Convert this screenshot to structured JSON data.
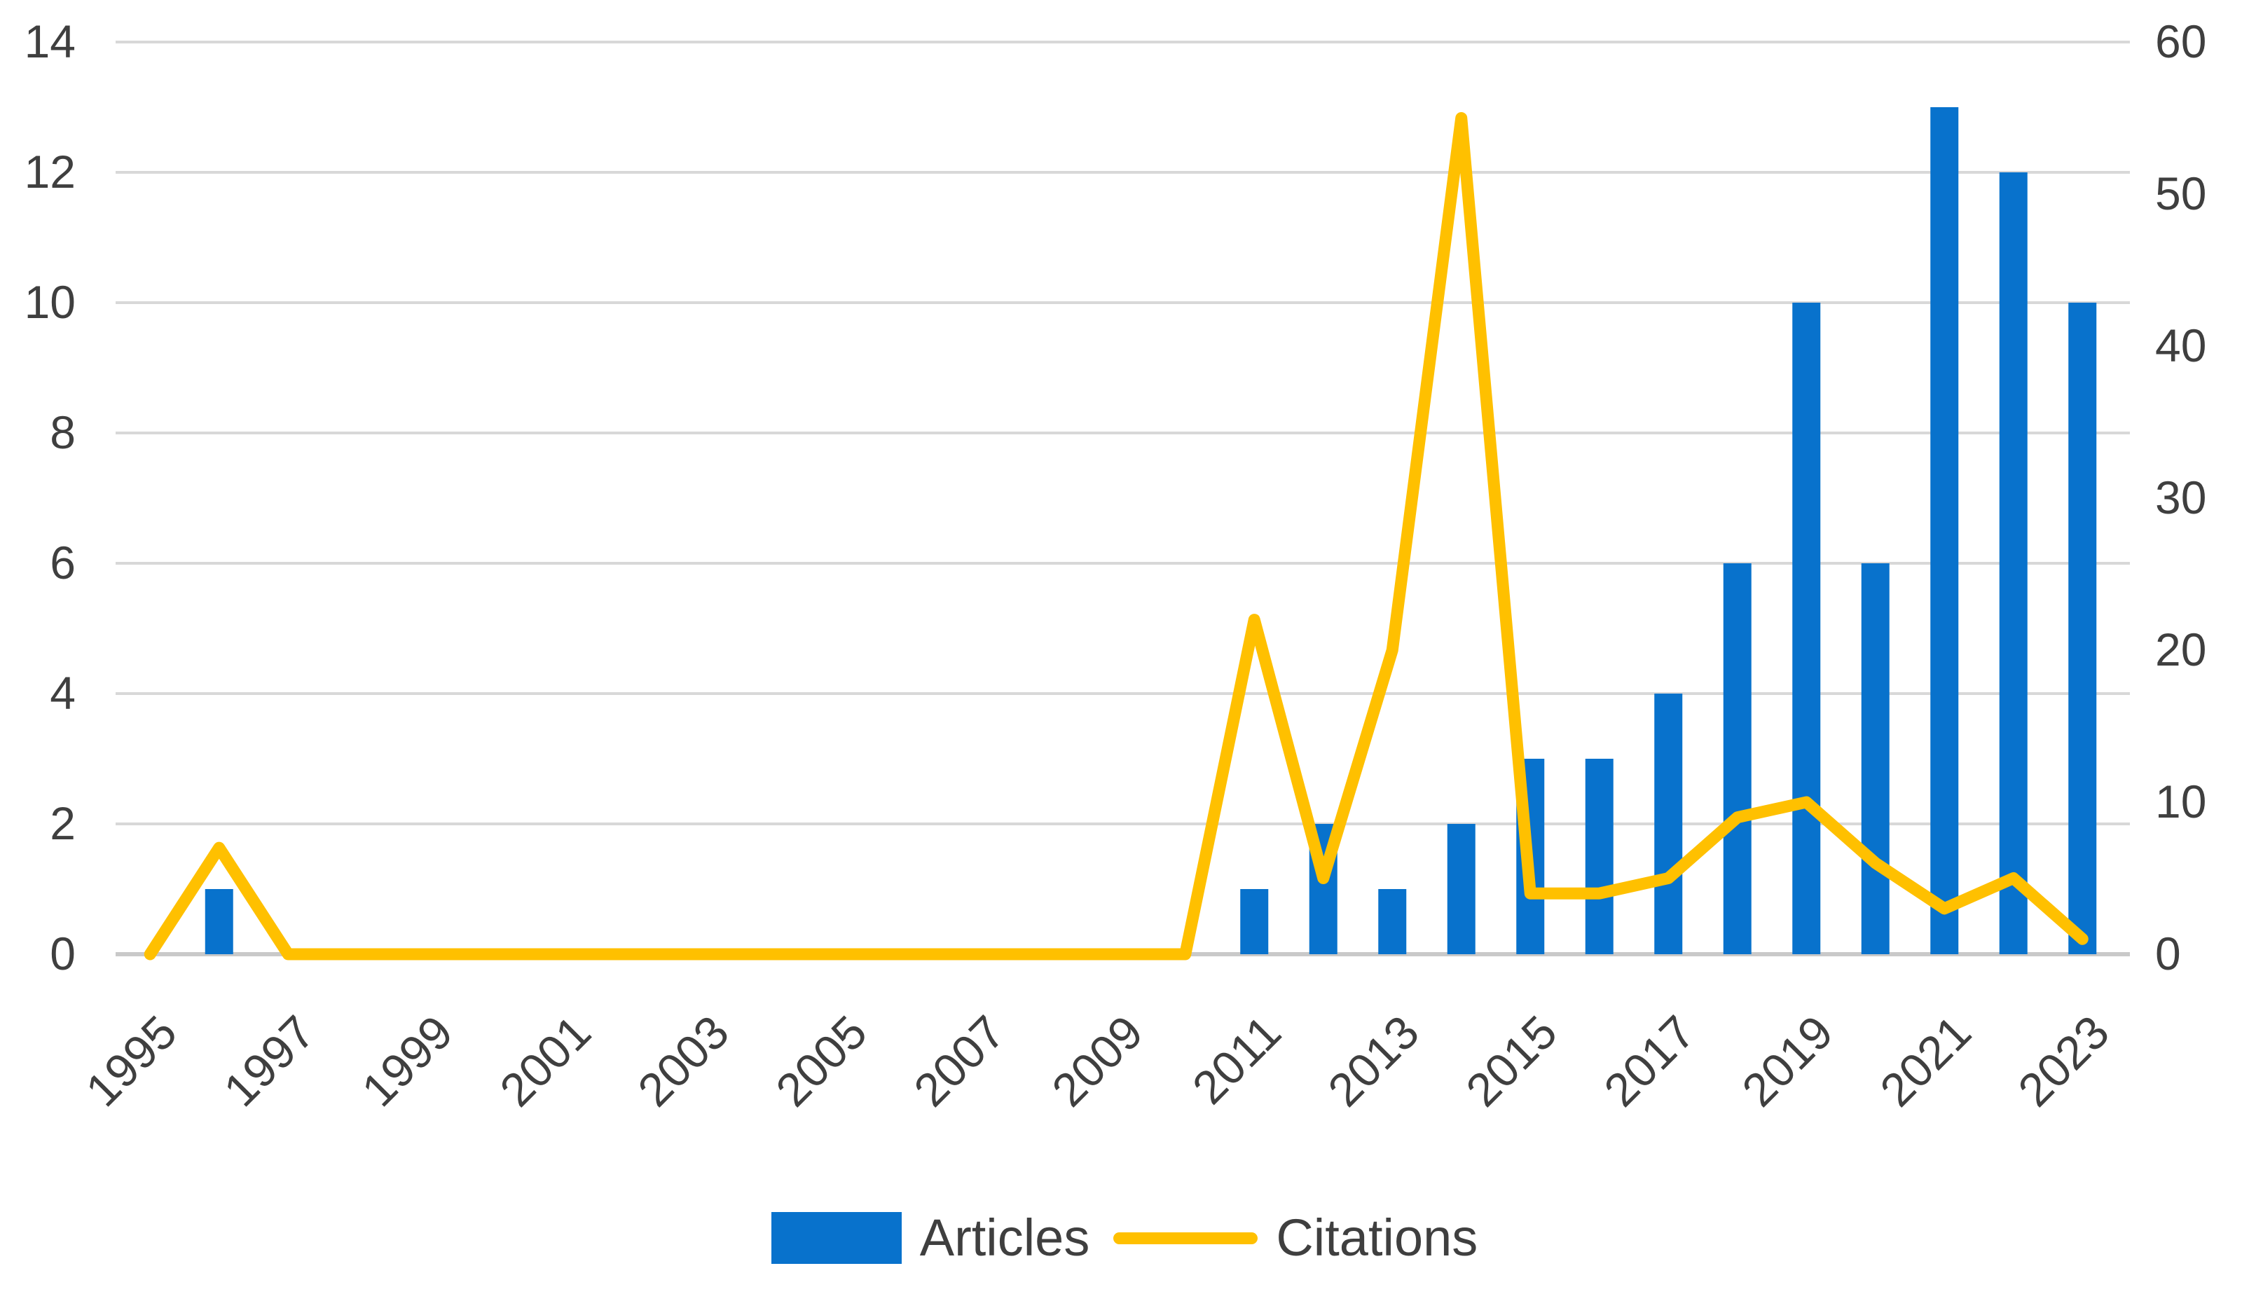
{
  "chart_data": {
    "type": "combo",
    "subtype": [
      "bar",
      "line"
    ],
    "title": "",
    "x": [
      1995,
      1996,
      1997,
      1998,
      1999,
      2000,
      2001,
      2002,
      2003,
      2004,
      2005,
      2006,
      2007,
      2008,
      2009,
      2010,
      2011,
      2012,
      2013,
      2014,
      2015,
      2016,
      2017,
      2018,
      2019,
      2020,
      2021,
      2022,
      2023
    ],
    "x_axis": {
      "tick_labels": [
        "1995",
        "1997",
        "1999",
        "2001",
        "2003",
        "2005",
        "2007",
        "2009",
        "2011",
        "2013",
        "2015",
        "2017",
        "2019",
        "2021",
        "2023"
      ],
      "label_rotation_deg": -45
    },
    "left_axis": {
      "range": [
        0,
        14
      ],
      "ticks": [
        0,
        2,
        4,
        6,
        8,
        10,
        12,
        14
      ],
      "series": "Articles"
    },
    "right_axis": {
      "range": [
        0,
        60
      ],
      "ticks": [
        0,
        10,
        20,
        30,
        40,
        50,
        60
      ],
      "series": "Citations"
    },
    "grid": "horizontal-left-ticks-only",
    "legend_position": "bottom-center",
    "series": [
      {
        "name": "Articles",
        "type": "bar",
        "axis": "left",
        "color": "#0872CC",
        "values": [
          0,
          1,
          0,
          0,
          0,
          0,
          0,
          0,
          0,
          0,
          0,
          0,
          0,
          0,
          0,
          0,
          1,
          2,
          1,
          2,
          3,
          3,
          4,
          6,
          10,
          6,
          13,
          12,
          10
        ]
      },
      {
        "name": "Citations",
        "type": "line",
        "axis": "right",
        "color": "#FFC000",
        "values": [
          0,
          7,
          0,
          0,
          0,
          0,
          0,
          0,
          0,
          0,
          0,
          0,
          0,
          0,
          0,
          0,
          22,
          5,
          20,
          55,
          4,
          4,
          5,
          9,
          10,
          6,
          3,
          5,
          1
        ]
      }
    ],
    "colors": {
      "bar": "#0872CC",
      "line": "#FFC000",
      "grid": "#D8D8D8",
      "baseline": "#C9C9C9",
      "axis_text": "#3F3F3F",
      "background": "#FFFFFF"
    }
  }
}
